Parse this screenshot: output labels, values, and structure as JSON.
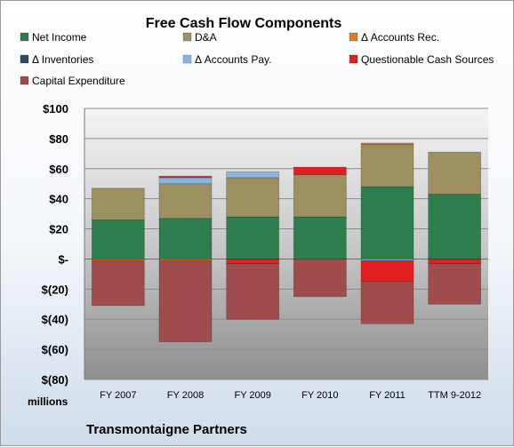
{
  "chart_data": {
    "type": "bar",
    "stacked": true,
    "title": "Free Cash Flow Components",
    "unit_label": "millions",
    "footer": "Transmontaigne Partners",
    "categories": [
      "FY 2007",
      "FY 2008",
      "FY 2009",
      "FY 2010",
      "FY 2011",
      "TTM 9-2012"
    ],
    "ylim": [
      -80,
      100
    ],
    "yticks": [
      100,
      80,
      60,
      40,
      20,
      0,
      -20,
      -40,
      -60,
      -80
    ],
    "ytick_labels": [
      "$100",
      "$80",
      "$60",
      "$40",
      "$20",
      "$-",
      "$(20)",
      "$(40)",
      "$(60)",
      "$(80)"
    ],
    "grid": true,
    "legend_position": "top",
    "series": [
      {
        "name": "Net Income",
        "color": "#2e7d4f",
        "values": [
          26,
          27,
          28,
          28,
          48,
          43
        ]
      },
      {
        "name": "D&A",
        "color": "#9c9060",
        "values": [
          21,
          23,
          26,
          28,
          28,
          28
        ]
      },
      {
        "name": "Δ Accounts Rec.",
        "color": "#e07a1e",
        "values": [
          -1,
          -1,
          0,
          0,
          1,
          0
        ]
      },
      {
        "name": "Δ Inventories",
        "color": "#2f4a68",
        "values": [
          0,
          0,
          0,
          0,
          0,
          0
        ]
      },
      {
        "name": "Δ Accounts Pay.",
        "color": "#8db3e2",
        "values": [
          0,
          4,
          4,
          0,
          -1,
          0
        ]
      },
      {
        "name": "Questionable Cash Sources",
        "color": "#e02020",
        "values": [
          0,
          1,
          -3,
          5,
          -14,
          -3
        ]
      },
      {
        "name": "Capital Expenditure",
        "color": "#a04c4c",
        "values": [
          -30,
          -54,
          -37,
          -25,
          -28,
          -27
        ]
      }
    ]
  }
}
